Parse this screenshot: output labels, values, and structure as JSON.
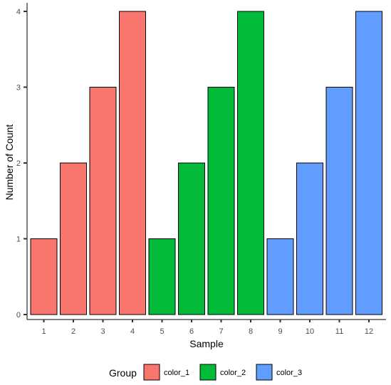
{
  "chart_data": {
    "type": "bar",
    "categories": [
      "1",
      "2",
      "3",
      "4",
      "5",
      "6",
      "7",
      "8",
      "9",
      "10",
      "11",
      "12"
    ],
    "values": [
      1,
      2,
      3,
      4,
      1,
      2,
      3,
      4,
      1,
      2,
      3,
      4
    ],
    "groups": [
      "color_1",
      "color_1",
      "color_1",
      "color_1",
      "color_2",
      "color_2",
      "color_2",
      "color_2",
      "color_3",
      "color_3",
      "color_3",
      "color_3"
    ],
    "xlabel": "Sample",
    "ylabel": "Number of Count",
    "ylim": [
      0,
      4
    ],
    "yticks": [
      "0",
      "1",
      "2",
      "3",
      "4"
    ],
    "grid": false,
    "legend": {
      "title": "Group",
      "placement": "bottom",
      "entries": [
        {
          "name": "color_1",
          "color": "#F8766D"
        },
        {
          "name": "color_2",
          "color": "#00BA38"
        },
        {
          "name": "color_3",
          "color": "#619CFF"
        }
      ]
    }
  }
}
